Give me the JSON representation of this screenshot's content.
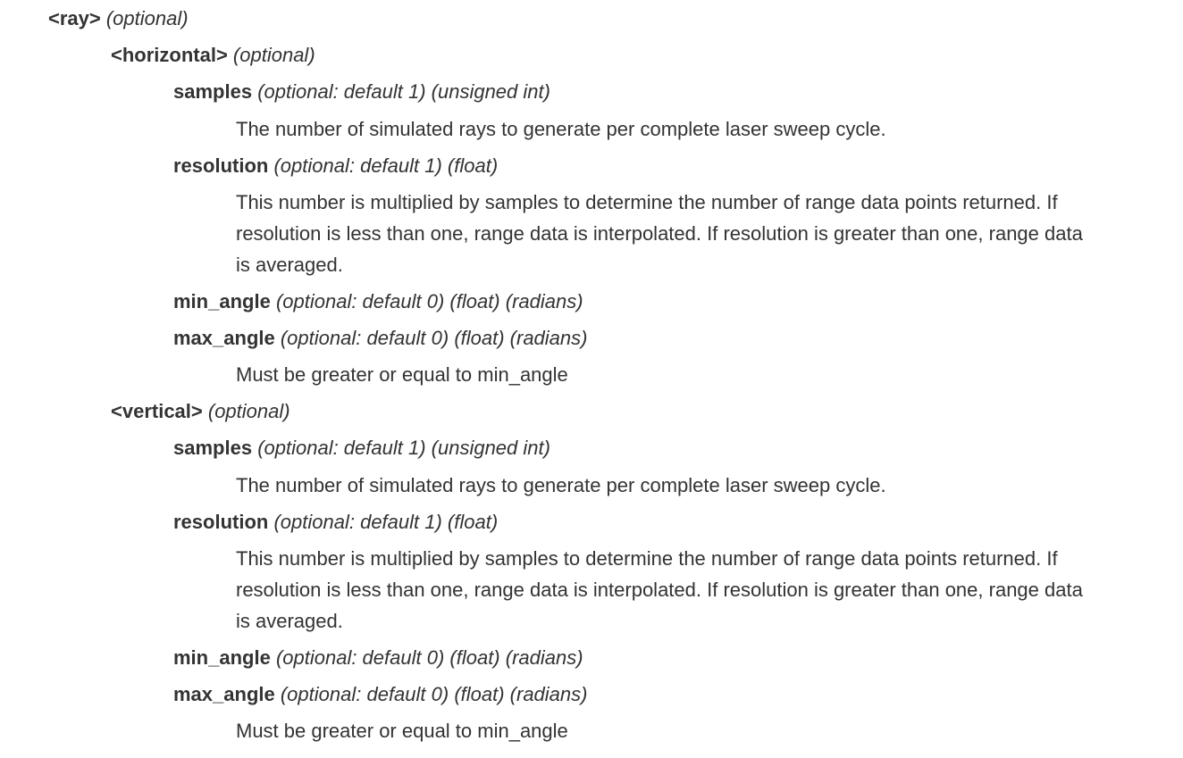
{
  "ray": {
    "name": "<ray>",
    "attrs": "(optional)",
    "horizontal": {
      "name": "<horizontal>",
      "attrs": "(optional)",
      "samples": {
        "name": "samples",
        "attrs": "(optional: default 1) (unsigned int)",
        "description": "The number of simulated rays to generate per complete laser sweep cycle."
      },
      "resolution": {
        "name": "resolution",
        "attrs": "(optional: default 1) (float)",
        "description": "This number is multiplied by samples to determine the number of range data points returned. If resolution is less than one, range data is interpolated. If resolution is greater than one, range data is averaged."
      },
      "min_angle": {
        "name": "min_angle",
        "attrs": "(optional: default 0) (float) (radians)"
      },
      "max_angle": {
        "name": "max_angle",
        "attrs": "(optional: default 0) (float) (radians)",
        "description": "Must be greater or equal to min_angle"
      }
    },
    "vertical": {
      "name": "<vertical>",
      "attrs": "(optional)",
      "samples": {
        "name": "samples",
        "attrs": "(optional: default 1) (unsigned int)",
        "description": "The number of simulated rays to generate per complete laser sweep cycle."
      },
      "resolution": {
        "name": "resolution",
        "attrs": "(optional: default 1) (float)",
        "description": "This number is multiplied by samples to determine the number of range data points returned. If resolution is less than one, range data is interpolated. If resolution is greater than one, range data is averaged."
      },
      "min_angle": {
        "name": "min_angle",
        "attrs": "(optional: default 0) (float) (radians)"
      },
      "max_angle": {
        "name": "max_angle",
        "attrs": "(optional: default 0) (float) (radians)",
        "description": "Must be greater or equal to min_angle"
      }
    }
  }
}
